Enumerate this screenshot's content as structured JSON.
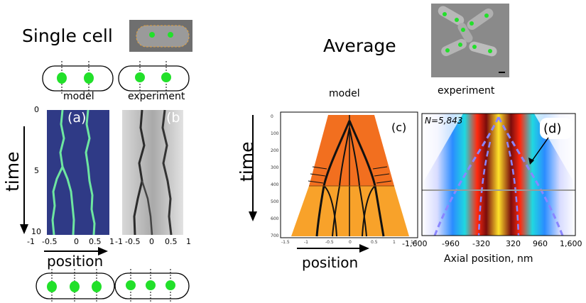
{
  "titles": {
    "single_cell": "Single cell",
    "average": "Average",
    "model_left": "model",
    "experiment_left": "experiment",
    "model_right": "model",
    "experiment_right": "experiment"
  },
  "axes": {
    "time_left": "time",
    "time_right": "time",
    "position_left": "position",
    "position_right": "position",
    "axial_position": "Axial position, nm"
  },
  "panels": {
    "a": "(a)",
    "b": "(b",
    "c": "(c)",
    "d": "(d)",
    "n_label": "N=5,843"
  },
  "ticks": {
    "time": [
      "0",
      "5",
      "10"
    ],
    "pos_a": [
      "-1",
      "-0.5",
      "0",
      "0.5",
      "1"
    ],
    "pos_b": [
      "-1",
      "-0.5",
      "0",
      "0.5",
      "1"
    ],
    "pos_c": [
      "-1.5",
      "-1",
      "-0.5",
      "0",
      "0.5",
      "1",
      "1.5"
    ],
    "time_c": [
      "0",
      "100",
      "200",
      "300",
      "400",
      "500",
      "600",
      "700"
    ],
    "nm_d": [
      "-1,600",
      "-960",
      "-320",
      "320",
      "960",
      "1,600"
    ]
  },
  "colors": {
    "foci_green": "#22e02a",
    "kymo_model_bg": "#2f3a86",
    "kymo_model_line": "#6ee6a0",
    "orange_dark": "#f26f1f",
    "orange_light": "#f8a22a"
  }
}
